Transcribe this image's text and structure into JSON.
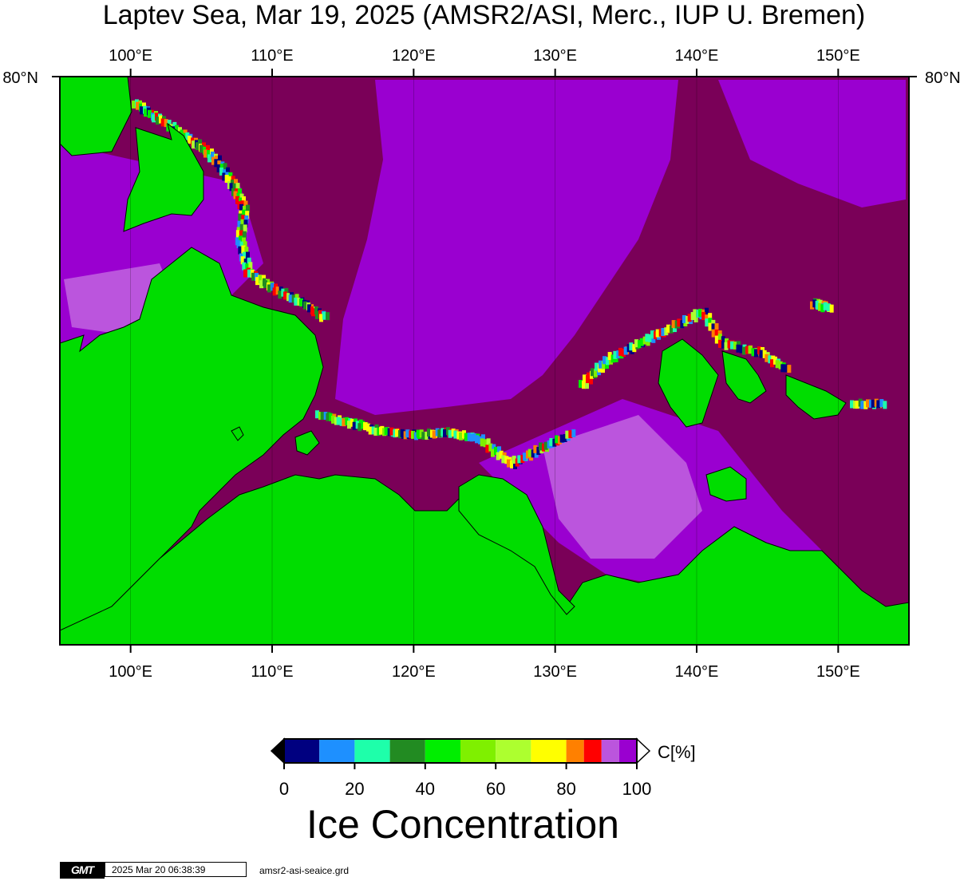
{
  "title": "Laptev Sea, Mar 19, 2025 (AMSR2/ASI, Merc., IUP U. Bremen)",
  "map": {
    "projection": "Mercator",
    "region": "Laptev Sea",
    "lon_range": [
      95,
      155
    ],
    "top_latitude_label": "80°N",
    "longitude_ticks_top": [
      "100°E",
      "110°E",
      "120°E",
      "130°E",
      "140°E",
      "150°E"
    ],
    "longitude_ticks_bottom": [
      "100°E",
      "110°E",
      "120°E",
      "130°E",
      "140°E",
      "150°E"
    ],
    "longitude_values": [
      100,
      110,
      120,
      130,
      140,
      150
    ],
    "colors": {
      "land": "#00dd00",
      "open_ice": "#7a0058",
      "high_ice": "#9a00d0",
      "mid_ice": "#bb55dd"
    }
  },
  "colorbar": {
    "unit_label": "C[%]",
    "tick_labels": [
      "0",
      "20",
      "40",
      "60",
      "80",
      "100"
    ],
    "tick_values": [
      0,
      20,
      40,
      60,
      80,
      100
    ],
    "bins": [
      {
        "from": 0,
        "to": 10,
        "color": "#000080"
      },
      {
        "from": 10,
        "to": 20,
        "color": "#1e90ff"
      },
      {
        "from": 20,
        "to": 30,
        "color": "#1effaa"
      },
      {
        "from": 30,
        "to": 40,
        "color": "#228b22"
      },
      {
        "from": 40,
        "to": 50,
        "color": "#00ee00"
      },
      {
        "from": 50,
        "to": 60,
        "color": "#7ff000"
      },
      {
        "from": 60,
        "to": 70,
        "color": "#adff2f"
      },
      {
        "from": 70,
        "to": 80,
        "color": "#ffff00"
      },
      {
        "from": 80,
        "to": 85,
        "color": "#ff8000"
      },
      {
        "from": 85,
        "to": 90,
        "color": "#ff0000"
      },
      {
        "from": 90,
        "to": 95,
        "color": "#bb55dd"
      },
      {
        "from": 95,
        "to": 100,
        "color": "#9a00d0"
      }
    ],
    "under_color": "#000000",
    "over_color": "#ffffff"
  },
  "colorbar_title": "Ice Concentration",
  "footer": {
    "logo": "GMT",
    "timestamp": "2025 Mar 20 06:38:39",
    "filename": "amsr2-asi-seaice.grd"
  }
}
